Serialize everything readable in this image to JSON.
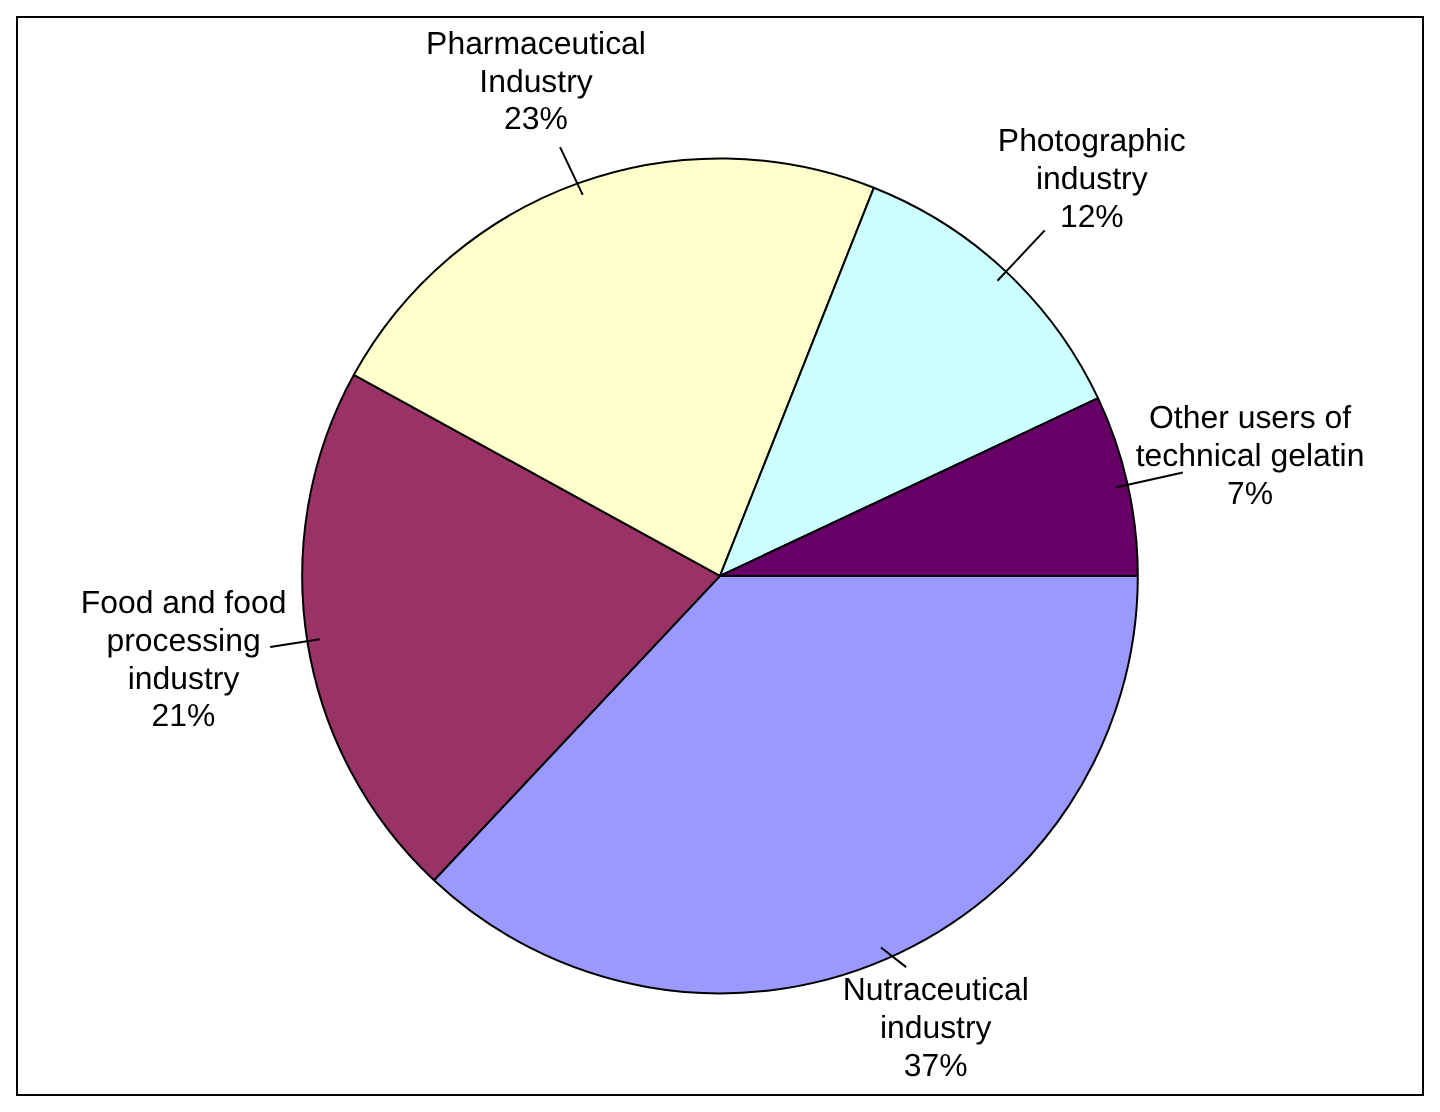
{
  "chart_data": {
    "type": "pie",
    "categories": [
      "Nutraceutical industry",
      "Food and food processing industry",
      "Pharmaceutical Industry",
      "Photographic industry",
      "Other users of technical gelatin"
    ],
    "values": [
      37,
      21,
      23,
      12,
      7
    ],
    "value_labels": [
      "37%",
      "21%",
      "23%",
      "12%",
      "7%"
    ],
    "colors": [
      "#9999ff",
      "#993366",
      "#ffffcc",
      "#ccffff",
      "#660066"
    ],
    "legend": false
  }
}
